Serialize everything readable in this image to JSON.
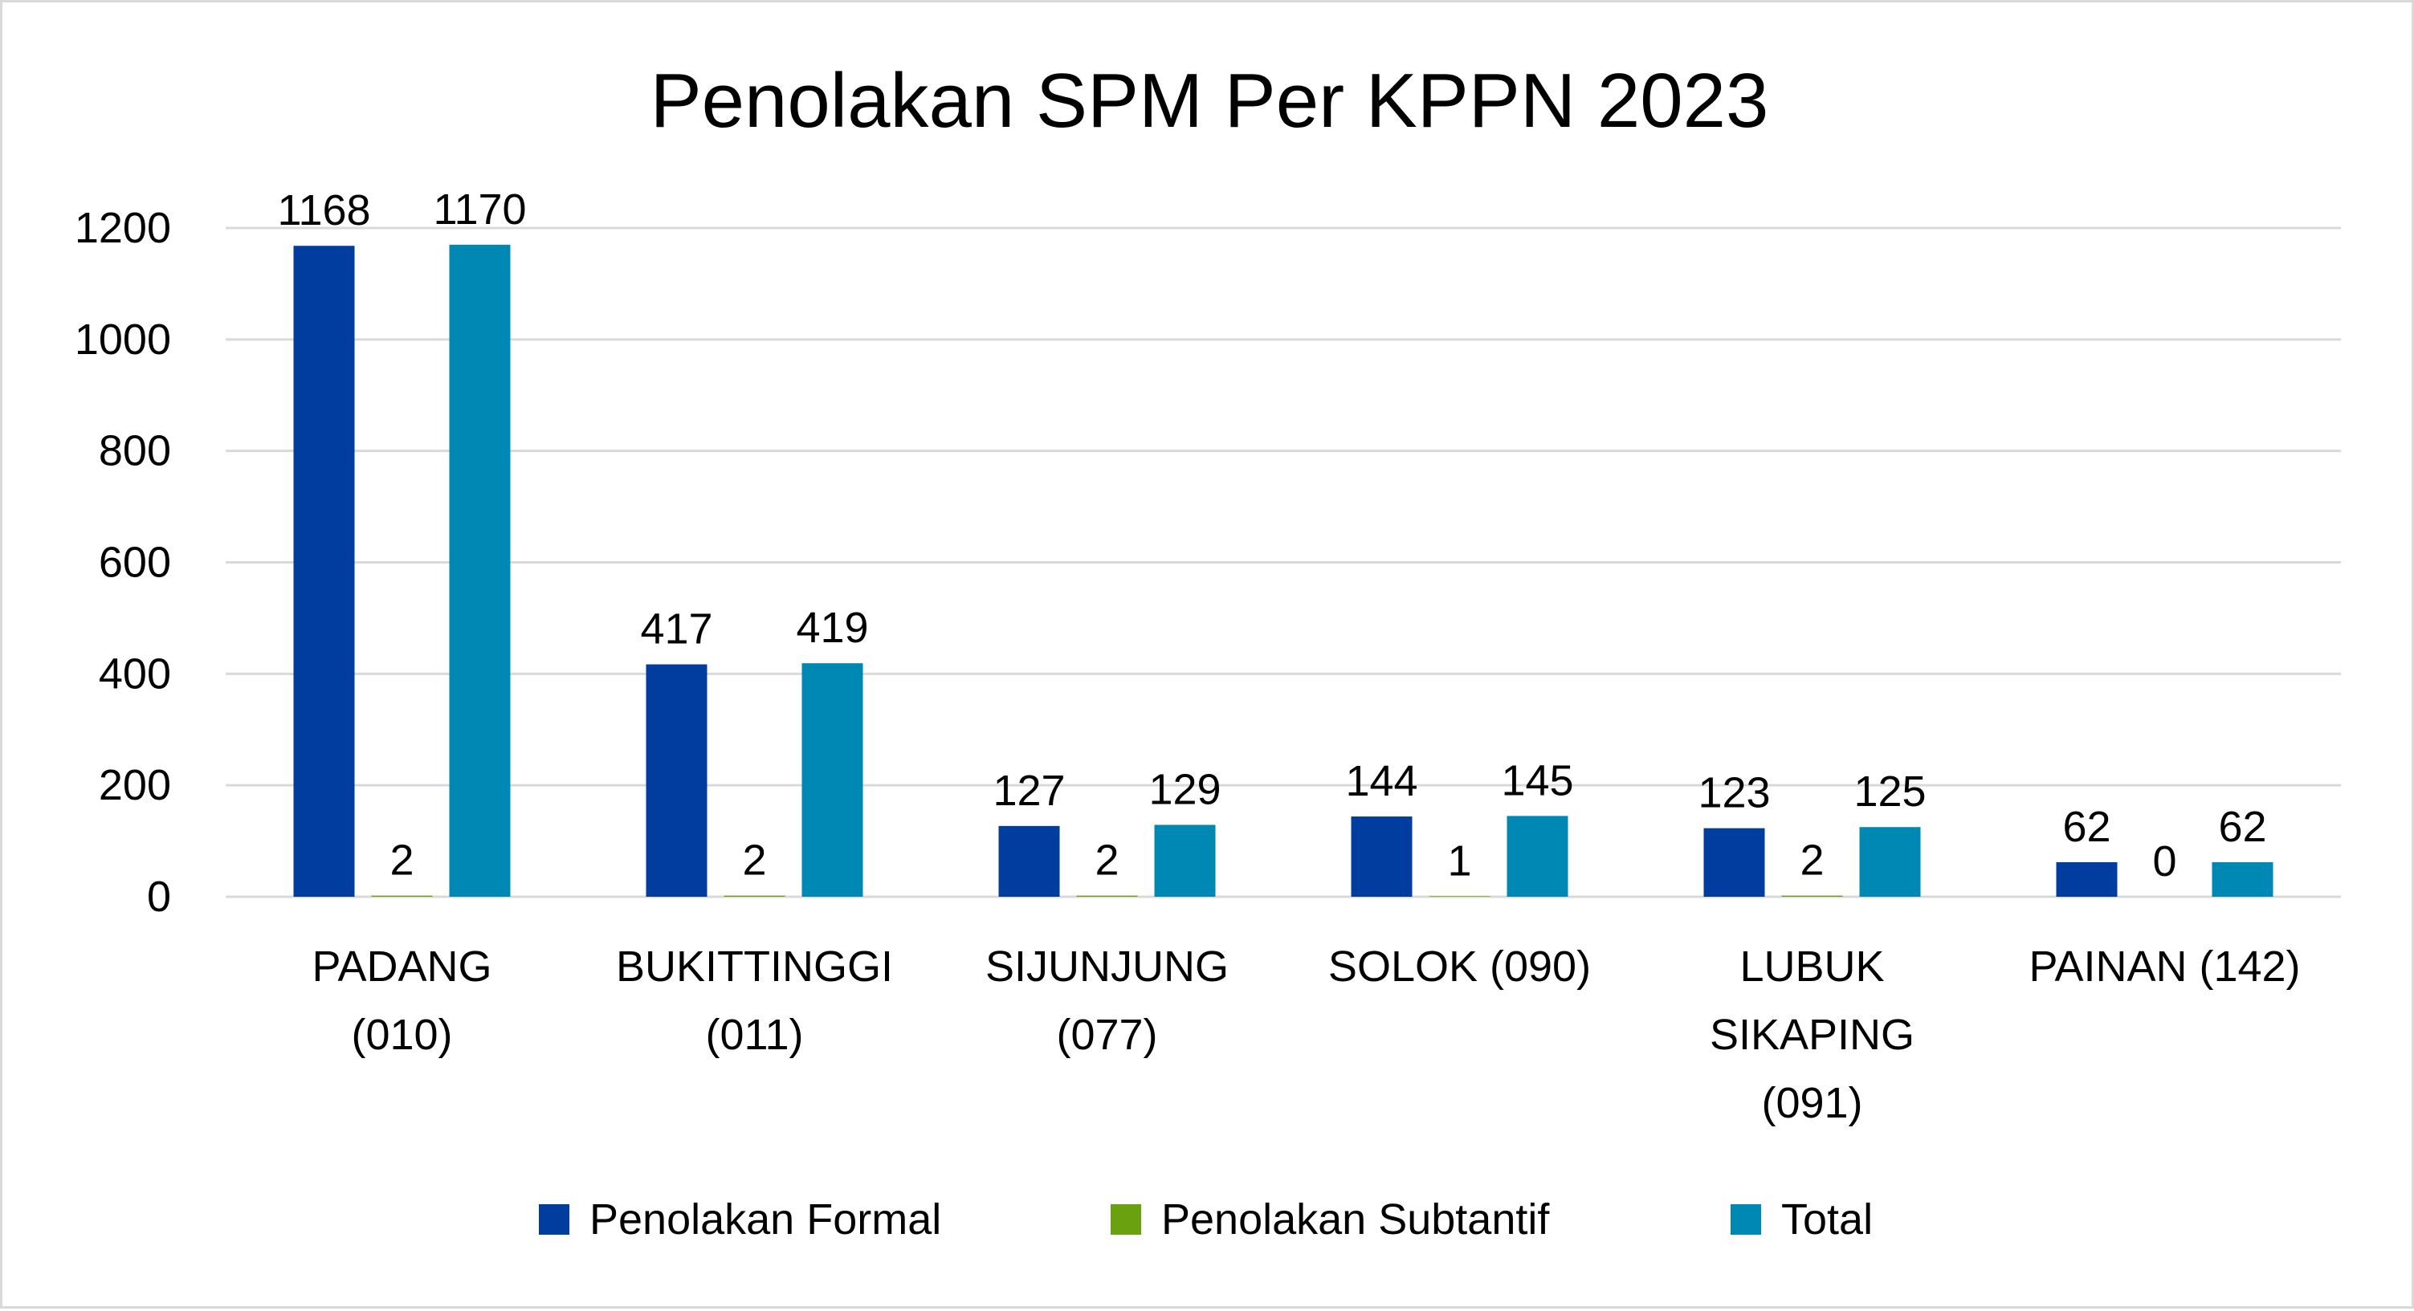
{
  "chart_data": {
    "type": "bar",
    "title": "Penolakan SPM Per KPPN 2023",
    "xlabel": "",
    "ylabel": "",
    "ylim": [
      0,
      1200
    ],
    "yticks": [
      0,
      200,
      400,
      600,
      800,
      1000,
      1200
    ],
    "grid": true,
    "legend_position": "bottom",
    "categories": [
      [
        "PADANG",
        "(010)"
      ],
      [
        "BUKITTINGGI",
        "(011)"
      ],
      [
        "SIJUNJUNG",
        "(077)"
      ],
      [
        "SOLOK (090)"
      ],
      [
        "LUBUK",
        "SIKAPING",
        "(091)"
      ],
      [
        "PAINAN (142)"
      ]
    ],
    "series": [
      {
        "name": "Penolakan Formal",
        "color": "#003d9e",
        "values": [
          1168,
          417,
          127,
          144,
          123,
          62
        ]
      },
      {
        "name": "Penolakan Subtantif",
        "color": "#6aa10f",
        "values": [
          2,
          2,
          2,
          1,
          2,
          0
        ]
      },
      {
        "name": "Total",
        "color": "#0088b5",
        "values": [
          1170,
          419,
          129,
          145,
          125,
          62
        ]
      }
    ]
  },
  "colors": {
    "grid": "#d9d9d9",
    "axis": "#d9d9d9",
    "border": "#d9d9d9"
  }
}
